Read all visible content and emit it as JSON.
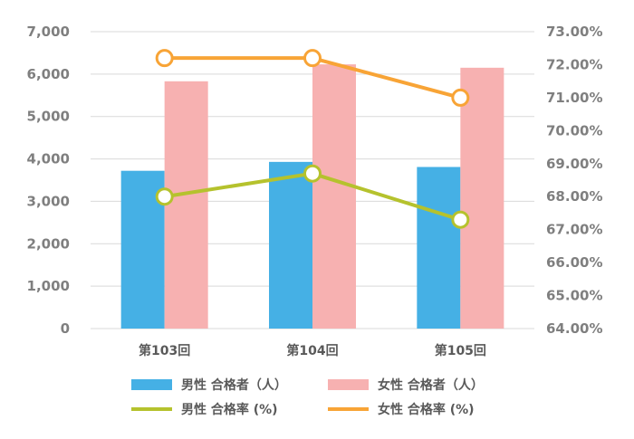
{
  "chart_data": {
    "type": "bar",
    "categories": [
      "第103回",
      "第104回",
      "第105回"
    ],
    "series": [
      {
        "name": "男性 合格者（人）",
        "kind": "bar",
        "axis": "left",
        "color": "#45b0e5",
        "values": [
          3720,
          3930,
          3810
        ]
      },
      {
        "name": "女性 合格者（人）",
        "kind": "bar",
        "axis": "left",
        "color": "#f7b1b1",
        "values": [
          5830,
          6230,
          6150
        ]
      },
      {
        "name": "男性 合格率 (%)",
        "kind": "line",
        "axis": "right",
        "color": "#b5c22d",
        "values": [
          68.0,
          68.7,
          67.3
        ]
      },
      {
        "name": "女性 合格率 (%)",
        "kind": "line",
        "axis": "right",
        "color": "#f8a436",
        "values": [
          72.2,
          72.2,
          71.0
        ]
      }
    ],
    "yleft": {
      "min": 0,
      "max": 7000,
      "step": 1000,
      "ticks": [
        "0",
        "1,000",
        "2,000",
        "3,000",
        "4,000",
        "5,000",
        "6,000",
        "7,000"
      ]
    },
    "yright": {
      "min": 64,
      "max": 73,
      "step": 1,
      "ticks": [
        "64.00%",
        "65.00%",
        "66.00%",
        "67.00%",
        "68.00%",
        "69.00%",
        "70.00%",
        "71.00%",
        "72.00%",
        "73.00%"
      ]
    },
    "grid": true,
    "legend": "bottom"
  }
}
